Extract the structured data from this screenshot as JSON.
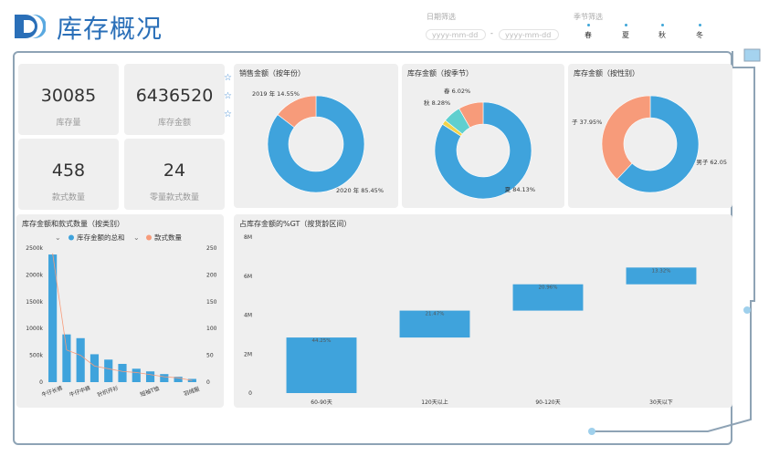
{
  "header": {
    "title": "库存概况"
  },
  "filters": {
    "date_label": "日期筛选",
    "date_start_placeholder": "yyyy-mm-dd",
    "date_sep": "-",
    "date_end_placeholder": "yyyy-mm-dd",
    "season_label": "季节筛选",
    "seasons": [
      "春",
      "夏",
      "秋",
      "冬"
    ]
  },
  "kpis": [
    {
      "value": "30085",
      "label": "库存量"
    },
    {
      "value": "6436520",
      "label": "库存金额"
    },
    {
      "value": "458",
      "label": "款式数量"
    },
    {
      "value": "24",
      "label": "零量款式数量"
    }
  ],
  "colors": {
    "blue": "#3fa3dc",
    "orange": "#f79b7a",
    "teal": "#5fcfcf",
    "yellow": "#f2d34b"
  },
  "pie_year": {
    "title": "销售金额（按年份）",
    "slices": [
      {
        "label": "2020 年 85.45%",
        "value": 85.45,
        "color": "#3fa3dc"
      },
      {
        "label": "2019 年 14.55%",
        "value": 14.55,
        "color": "#f79b7a"
      }
    ]
  },
  "pie_season": {
    "title": "库存金额（按季节）",
    "slices": [
      {
        "label": "夏 84.13%",
        "value": 84.13,
        "color": "#3fa3dc"
      },
      {
        "label": "",
        "value": 1.57,
        "color": "#f2d34b"
      },
      {
        "label": "春 6.02%",
        "value": 6.02,
        "color": "#5fcfcf"
      },
      {
        "label": "秋 8.28%",
        "value": 8.28,
        "color": "#f79b7a"
      }
    ]
  },
  "pie_gender": {
    "title": "库存金额（按性别）",
    "slices": [
      {
        "label": "男子 62.05",
        "value": 62.05,
        "color": "#3fa3dc"
      },
      {
        "label": "子 37.95%",
        "value": 37.95,
        "color": "#f79b7a"
      }
    ]
  },
  "chart_data": [
    {
      "type": "bar",
      "title": "库存金额和款式数量（按类别）",
      "legend": [
        "库存金额的总和",
        "款式数量"
      ],
      "categories": [
        "牛仔长裤",
        "",
        "牛仔中裤",
        "",
        "针织开衫",
        "",
        "",
        "短袖T恤",
        "",
        "",
        "羽绒服"
      ],
      "series": [
        {
          "name": "库存金额的总和",
          "values": [
            2380000,
            890000,
            820000,
            520000,
            420000,
            340000,
            250000,
            200000,
            150000,
            100000,
            60000
          ]
        },
        {
          "name": "款式数量",
          "values": [
            240,
            60,
            50,
            30,
            25,
            20,
            18,
            14,
            10,
            8,
            3
          ]
        }
      ],
      "ylim": [
        0,
        2500000
      ],
      "y_ticks": [
        "0",
        "500k",
        "1000k",
        "1500k",
        "2000k",
        "2500k"
      ],
      "y2lim": [
        0,
        250
      ],
      "y2_ticks": [
        "0",
        "50",
        "100",
        "150",
        "200",
        "250"
      ]
    },
    {
      "type": "waterfall",
      "title": "占库存金额的%GT（按货龄区间）",
      "categories": [
        "60-90天",
        "120天以上",
        "90-120天",
        "30天以下"
      ],
      "values": [
        2850000,
        1380000,
        1350000,
        860000
      ],
      "labels": [
        "44.25%",
        "21.47%",
        "20.96%",
        "13.32%"
      ],
      "ylim": [
        0,
        8000000
      ],
      "y_ticks": [
        "0",
        "2M",
        "4M",
        "6M",
        "8M"
      ]
    }
  ]
}
